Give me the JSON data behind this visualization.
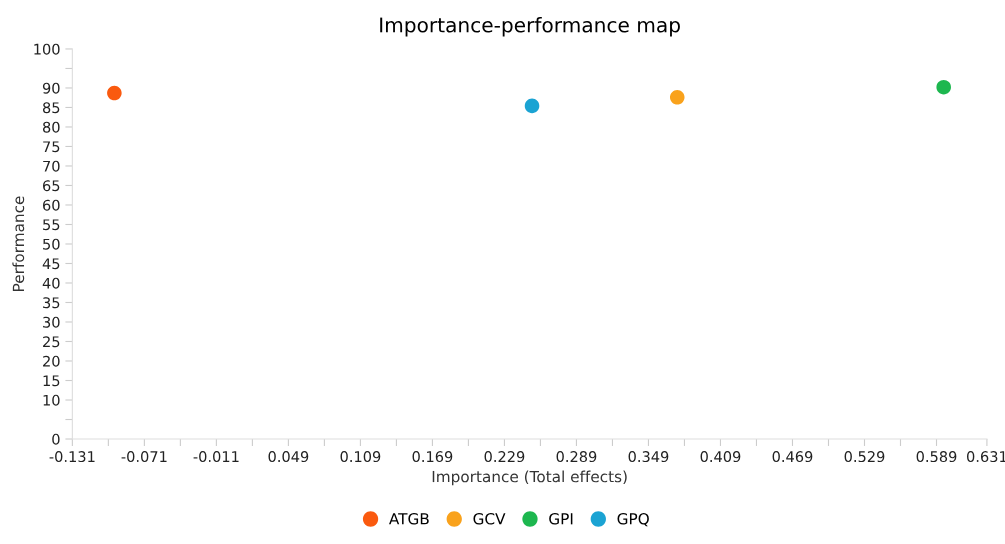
{
  "chart_data": {
    "type": "scatter",
    "title": "Importance-performance map",
    "xlabel": "Importance (Total effects)",
    "ylabel": "Performance",
    "series": [
      {
        "name": "ATGB",
        "color": "#fa5a0f",
        "x": [
          -0.096
        ],
        "values": [
          88.7
        ]
      },
      {
        "name": "GCV",
        "color": "#f9a21c",
        "x": [
          0.373
        ],
        "values": [
          87.6
        ]
      },
      {
        "name": "GPI",
        "color": "#1db74f",
        "x": [
          0.595
        ],
        "values": [
          90.2
        ]
      },
      {
        "name": "GPQ",
        "color": "#1ba3d3",
        "x": [
          0.252
        ],
        "values": [
          85.4
        ]
      }
    ],
    "xlim": [
      -0.131,
      0.631
    ],
    "xticks": [
      -0.131,
      {
        "value": -0.101,
        "label": null
      },
      -0.071,
      {
        "value": -0.041,
        "label": null
      },
      -0.011,
      {
        "value": 0.019,
        "label": null
      },
      0.049,
      {
        "value": 0.079,
        "label": null
      },
      0.109,
      {
        "value": 0.139,
        "label": null
      },
      0.169,
      {
        "value": 0.199,
        "label": null
      },
      0.229,
      {
        "value": 0.259,
        "label": null
      },
      0.289,
      {
        "value": 0.319,
        "label": null
      },
      0.349,
      {
        "value": 0.379,
        "label": null
      },
      0.409,
      {
        "value": 0.439,
        "label": null
      },
      0.469,
      {
        "value": 0.499,
        "label": null
      },
      0.529,
      {
        "value": 0.559,
        "label": null
      },
      0.589,
      0.631
    ],
    "ylim": [
      0,
      100
    ],
    "yticks": [
      0,
      {
        "value": 5,
        "label": null
      },
      10,
      15,
      20,
      25,
      30,
      35,
      40,
      45,
      50,
      55,
      60,
      65,
      70,
      75,
      80,
      85,
      90,
      {
        "value": 95,
        "label": null
      },
      100
    ],
    "marker": "circle",
    "grid": false,
    "legend": "bottom"
  }
}
